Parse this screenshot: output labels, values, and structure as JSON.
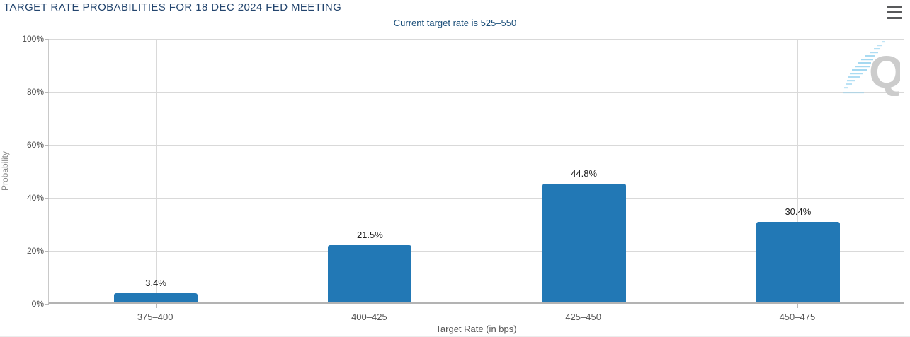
{
  "header": {
    "title": "TARGET RATE PROBABILITIES FOR 18 DEC 2024 FED MEETING",
    "subtitle": "Current target rate is 525–550",
    "menu_icon": "hamburger-icon"
  },
  "chart_data": {
    "type": "bar",
    "title": "TARGET RATE PROBABILITIES FOR 18 DEC 2024 FED MEETING",
    "subtitle": "Current target rate is 525–550",
    "categories": [
      "375–400",
      "400–425",
      "425–450",
      "450–475"
    ],
    "values": [
      3.4,
      21.5,
      44.8,
      30.4
    ],
    "value_labels": [
      "3.4%",
      "21.5%",
      "44.8%",
      "30.4%"
    ],
    "xlabel": "Target Rate (in bps)",
    "ylabel": "Probability",
    "ylim": [
      0,
      100
    ],
    "yticks": [
      {
        "value": 0,
        "label": "0%"
      },
      {
        "value": 20,
        "label": "20%"
      },
      {
        "value": 40,
        "label": "40%"
      },
      {
        "value": 60,
        "label": "60%"
      },
      {
        "value": 80,
        "label": "80%"
      },
      {
        "value": 100,
        "label": "100%"
      }
    ],
    "grid": true,
    "legend": "none",
    "bar_color": "#2278b5"
  },
  "watermark": {
    "letter": "Q",
    "letter_color": "#cccccc",
    "dash_color": "#8ecfee"
  }
}
